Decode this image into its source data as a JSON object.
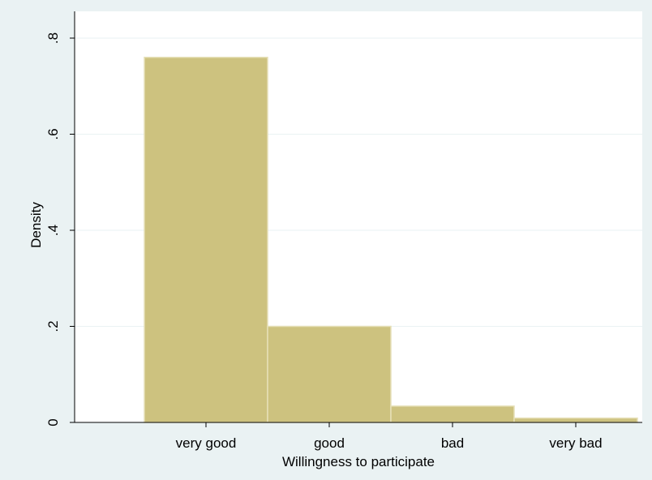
{
  "chart_data": {
    "type": "bar",
    "title": "",
    "xlabel": "Willingness to participate",
    "ylabel": "Density",
    "categories": [
      "very good",
      "good",
      "bad",
      "very bad"
    ],
    "values": [
      0.76,
      0.2,
      0.034,
      0.009
    ],
    "ylim": [
      0,
      0.8
    ],
    "yticks": [
      0,
      0.2,
      0.4,
      0.6,
      0.8
    ],
    "ytick_labels": [
      "0",
      ".2",
      ".4",
      ".6",
      ".8"
    ],
    "grid": true,
    "colors": {
      "bar_fill": "#cdc27f",
      "bar_edge": "#e6e0b8",
      "plot_background": "#ffffff",
      "figure_background": "#eaf2f3",
      "grid": "#eaf2f3"
    }
  }
}
